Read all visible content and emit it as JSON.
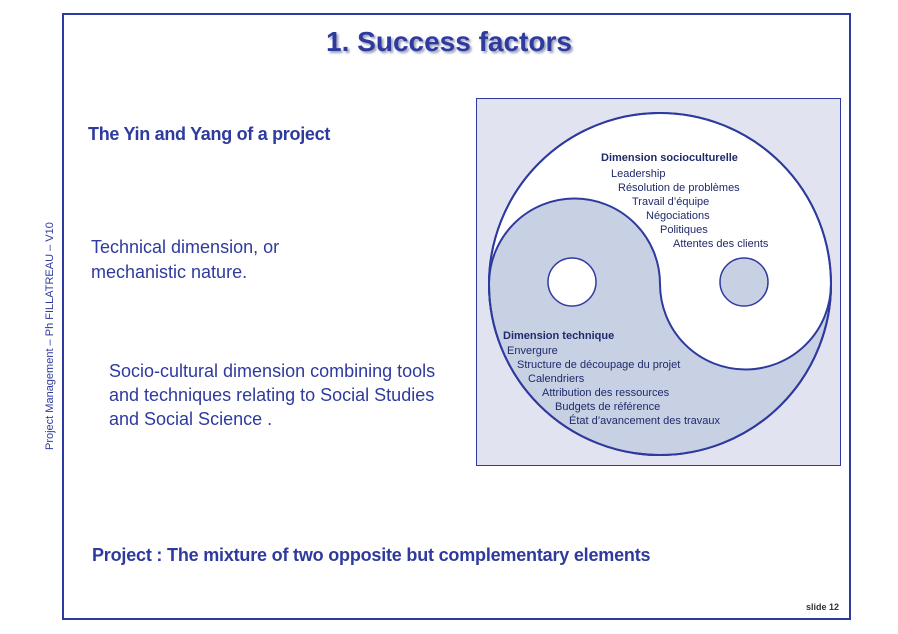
{
  "title": "1. Success factors",
  "side_label": "Project Management – Ph FILLATREAU – V10",
  "subtitle": "The Yin and Yang of a project",
  "technical_text": "Technical dimension, or mechanistic nature.",
  "socio_text": "Socio-cultural dimension combining tools and techniques relating to Social Studies and Social Science .",
  "conclusion": "Project :  The mixture of two opposite but complementary elements",
  "slide_number": "slide 12",
  "diagram": {
    "colors": {
      "light": "#ffffff",
      "dark": "#c8d0e4",
      "outline": "#2e3a9e",
      "background": "#e1e4f0"
    },
    "socio": {
      "title": "Dimension socioculturelle",
      "items": [
        "Leadership",
        "Résolution de problèmes",
        "Travail d’équipe",
        "Négociations",
        "Politiques",
        "Attentes des clients"
      ]
    },
    "technique": {
      "title": "Dimension technique",
      "items": [
        "Envergure",
        "Structure de découpage du projet",
        "Calendriers",
        "Attribution des ressources",
        "Budgets de référence",
        "État d’avancement des travaux"
      ]
    }
  }
}
